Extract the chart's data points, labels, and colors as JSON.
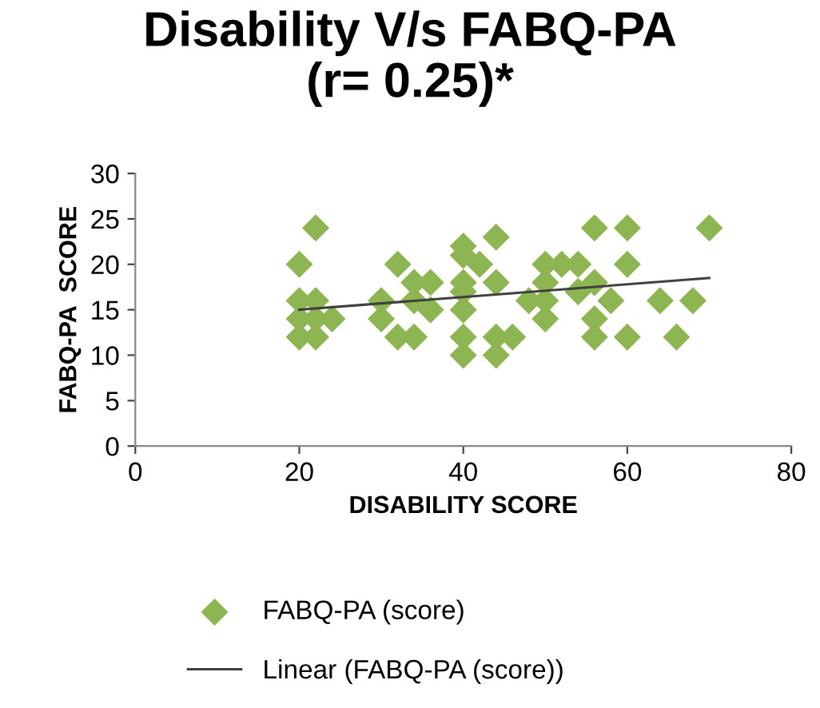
{
  "chart_data": {
    "type": "scatter",
    "title": "Disability V/s FABQ-PA\n(r= 0.25)*",
    "xlabel": "DISABILITY SCORE",
    "ylabel": "FABQ-PA  SCORE",
    "xlim": [
      0,
      80
    ],
    "xticks": [
      0,
      20,
      40,
      60,
      80
    ],
    "ylim": [
      0,
      30
    ],
    "yticks": [
      0,
      5,
      10,
      15,
      20,
      25,
      30
    ],
    "grid": false,
    "legend": "bottom",
    "series": [
      {
        "name": "FABQ-PA (score)",
        "color": "#8db552",
        "marker": "diamond",
        "x": [
          20,
          22,
          20,
          22,
          20,
          22,
          24,
          20,
          22,
          30,
          30,
          32,
          32,
          34,
          34,
          34,
          36,
          36,
          40,
          40,
          40,
          40,
          40,
          40,
          40,
          42,
          44,
          44,
          44,
          44,
          46,
          48,
          50,
          50,
          50,
          50,
          52,
          54,
          54,
          56,
          56,
          56,
          56,
          58,
          60,
          60,
          60,
          64,
          66,
          68,
          70
        ],
        "values": [
          20,
          24,
          16,
          16,
          14,
          14,
          14,
          12,
          12,
          16,
          14,
          20,
          12,
          18,
          16,
          12,
          18,
          15,
          22,
          21,
          18,
          17,
          15,
          12,
          10,
          20,
          23,
          18,
          12,
          10,
          12,
          16,
          20,
          18,
          16,
          14,
          20,
          20,
          17,
          24,
          18,
          14,
          12,
          16,
          24,
          20,
          12,
          16,
          12,
          16,
          24
        ]
      },
      {
        "name": "Linear (FABQ-PA (score))",
        "color": "#404040",
        "type": "line",
        "line_style": "solid",
        "x": [
          20,
          70
        ],
        "values": [
          15.0,
          18.5
        ]
      }
    ]
  }
}
